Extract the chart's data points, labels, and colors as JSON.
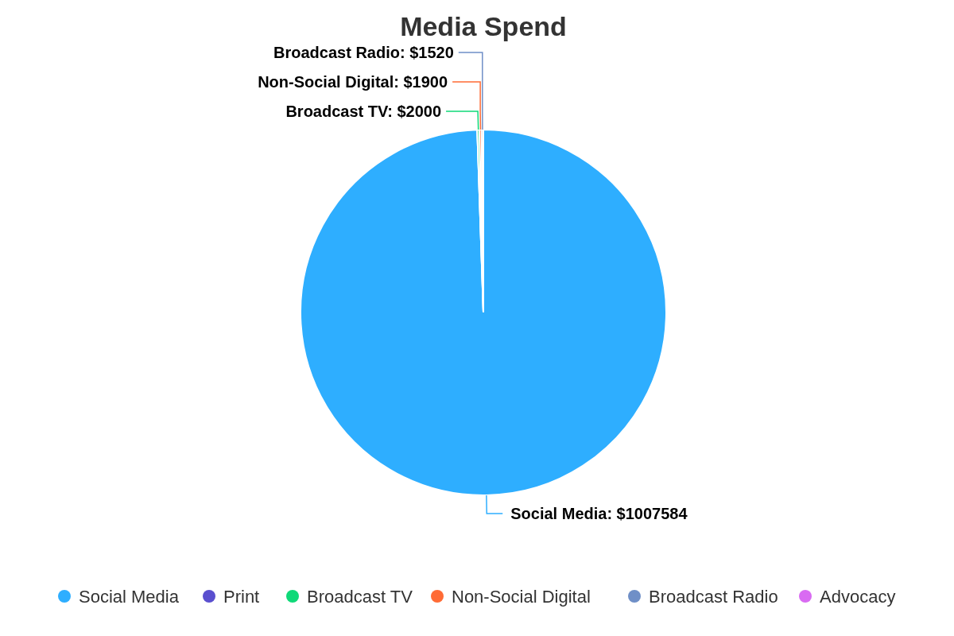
{
  "chart_data": {
    "type": "pie",
    "title": "Media Spend",
    "categories": [
      "Social Media",
      "Print",
      "Broadcast TV",
      "Non-Social Digital",
      "Broadcast Radio",
      "Advocacy"
    ],
    "values": [
      1007584,
      0,
      2000,
      1900,
      1520,
      0
    ],
    "value_labels": [
      "Social Media: $1007584",
      null,
      "Broadcast TV: $2000",
      "Non-Social Digital: $1900",
      "Broadcast Radio: $1520",
      null
    ],
    "colors": [
      "#2eaeff",
      "#5a4fcf",
      "#0fd978",
      "#ff6b35",
      "#6f8fc7",
      "#d96bf2"
    ],
    "legend": "bottom"
  }
}
